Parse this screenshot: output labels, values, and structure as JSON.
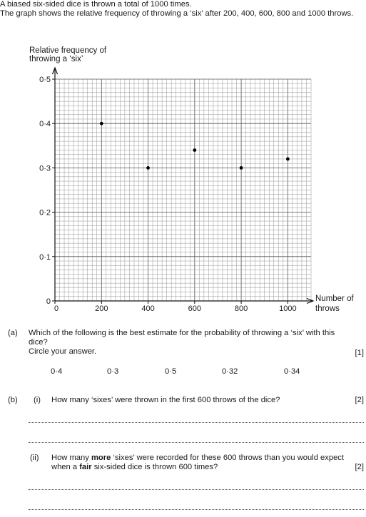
{
  "intro": {
    "line1": "A biased six-sided dice is thrown a total of 1000 times.",
    "line2": "The graph shows the relative frequency of throwing a ‘six’ after 200, 400, 600, 800 and 1000 throws."
  },
  "chart_data": {
    "type": "scatter",
    "ylabel_line1": "Relative frequency of",
    "ylabel_line2": "throwing a ‘six’",
    "xlabel_line1": "Number of",
    "xlabel_line2": "throws",
    "x": [
      200,
      400,
      600,
      800,
      1000
    ],
    "y": [
      0.4,
      0.3,
      0.34,
      0.3,
      0.32
    ],
    "xlim": [
      0,
      1100
    ],
    "ylim": [
      0,
      0.5
    ],
    "x_ticks": [
      0,
      200,
      400,
      600,
      800,
      1000
    ],
    "x_tick_labels": [
      "0",
      "200",
      "400",
      "600",
      "800",
      "1000"
    ],
    "y_ticks": [
      0,
      0.1,
      0.2,
      0.3,
      0.4,
      0.5
    ],
    "y_tick_labels": [
      "0",
      "0·1",
      "0·2",
      "0·3",
      "0·4",
      "0·5"
    ],
    "grid": true
  },
  "part_a": {
    "label": "(a)",
    "line1": "Which of the following is the best estimate for the probability of throwing a ‘six’ with this",
    "line2": "dice?",
    "line3": "Circle your answer.",
    "marks": "[1]",
    "options": [
      "0·4",
      "0·3",
      "0·5",
      "0·32",
      "0·34"
    ]
  },
  "part_b": {
    "label": "(b)",
    "i": {
      "label": "(i)",
      "text": "How many ‘sixes’ were thrown in the first 600 throws of the dice?",
      "marks": "[2]"
    },
    "ii": {
      "label": "(ii)",
      "t1": "How many ",
      "t2": "more",
      "t3": " ‘sixes’ were recorded for these 600 throws than you would expect",
      "t4": "when a ",
      "t5": "fair",
      "t6": " six-sided dice is thrown 600 times?",
      "marks": "[2]"
    }
  }
}
